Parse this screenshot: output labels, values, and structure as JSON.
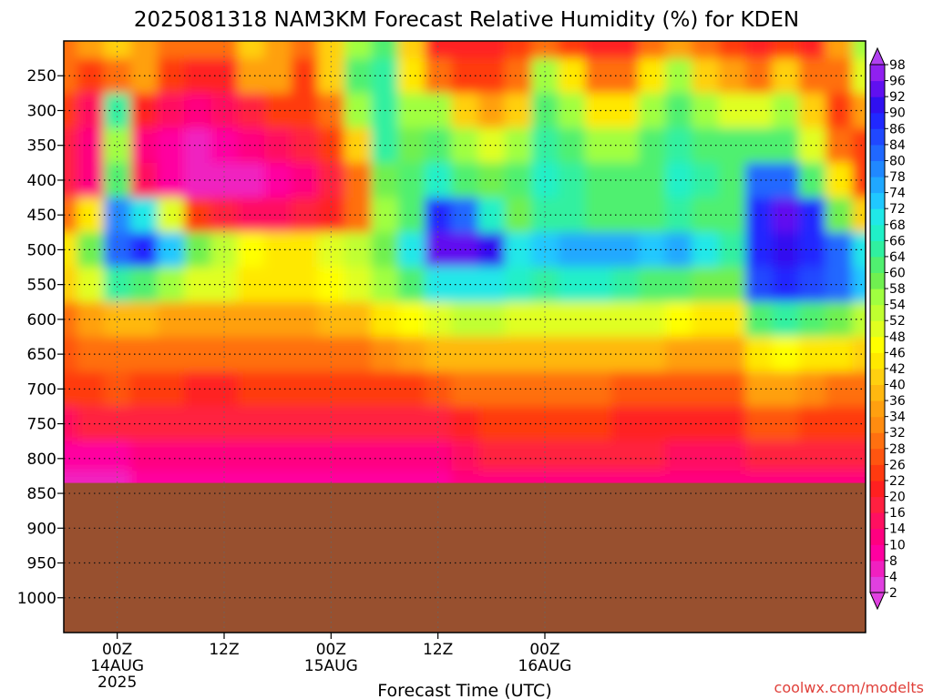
{
  "chart_data": {
    "type": "heatmap",
    "title": "2025081318 NAM3KM Forecast Relative Humidity (%) for KDEN",
    "xlabel": "Forecast Time (UTC)",
    "ylabel": "",
    "credit": "coolwx.com/modelts",
    "y_levels": [
      250,
      300,
      350,
      400,
      450,
      500,
      550,
      600,
      650,
      700,
      750,
      800,
      850,
      900,
      950,
      1000
    ],
    "y_tick_labels": [
      "250",
      "300",
      "350",
      "400",
      "450",
      "500",
      "550",
      "600",
      "650",
      "700",
      "750",
      "800",
      "850",
      "900",
      "950",
      "1000"
    ],
    "ylim": [
      200,
      1050
    ],
    "x_hours": [
      18,
      21,
      24,
      27,
      30,
      33,
      36,
      39,
      42,
      45,
      48,
      51,
      54,
      57,
      60,
      63,
      66,
      69,
      72,
      75,
      78,
      81,
      84,
      87,
      90,
      93,
      96,
      99,
      102,
      105,
      108
    ],
    "x_tick_hours": [
      24,
      36,
      48,
      60,
      72
    ],
    "x_tick_labels": [
      [
        "00Z",
        "14AUG",
        "2025"
      ],
      [
        "12Z"
      ],
      [
        "00Z",
        "15AUG"
      ],
      [
        "12Z"
      ],
      [
        "00Z",
        "16AUG"
      ]
    ],
    "ground_level_hpa": 835,
    "colorbar_values": [
      2,
      4,
      8,
      10,
      14,
      16,
      20,
      22,
      26,
      28,
      32,
      34,
      36,
      40,
      42,
      46,
      48,
      52,
      54,
      58,
      60,
      64,
      66,
      68,
      72,
      74,
      78,
      80,
      84,
      86,
      90,
      92,
      96,
      98
    ],
    "colorbar_colors": [
      "#e040e0",
      "#f020c0",
      "#ff00a0",
      "#ff0080",
      "#ff1060",
      "#ff2040",
      "#ff2020",
      "#ff3a10",
      "#ff5510",
      "#ff7010",
      "#ff8c10",
      "#ffa010",
      "#ffb810",
      "#ffd010",
      "#ffe800",
      "#ffff00",
      "#e0ff20",
      "#c0ff30",
      "#a0ff40",
      "#70f050",
      "#50f070",
      "#30f0a0",
      "#20f0c8",
      "#20e8e8",
      "#20c8ff",
      "#20a8ff",
      "#2088ff",
      "#2068ff",
      "#2048ff",
      "#2028ff",
      "#3010f0",
      "#6010f0",
      "#9020f0",
      "#b040f0"
    ],
    "ground_color": "#98502f",
    "rh_rows": [
      {
        "hpa": 200,
        "values": [
          30,
          35,
          40,
          35,
          30,
          28,
          30,
          40,
          35,
          30,
          40,
          55,
          60,
          40,
          20,
          20,
          20,
          25,
          30,
          25,
          20,
          20,
          30,
          35,
          30,
          25,
          20,
          25,
          20,
          35,
          55
        ]
      },
      {
        "hpa": 250,
        "values": [
          28,
          25,
          30,
          35,
          25,
          20,
          20,
          35,
          35,
          25,
          40,
          60,
          65,
          45,
          30,
          25,
          25,
          30,
          55,
          45,
          30,
          30,
          45,
          55,
          40,
          35,
          30,
          40,
          30,
          30,
          50
        ]
      },
      {
        "hpa": 300,
        "values": [
          22,
          15,
          65,
          20,
          14,
          12,
          14,
          18,
          22,
          22,
          30,
          55,
          65,
          55,
          55,
          40,
          35,
          40,
          60,
          55,
          45,
          45,
          55,
          60,
          55,
          50,
          50,
          55,
          40,
          25,
          35
        ]
      },
      {
        "hpa": 350,
        "values": [
          18,
          12,
          55,
          12,
          8,
          6,
          8,
          10,
          14,
          18,
          22,
          40,
          65,
          58,
          62,
          55,
          50,
          55,
          65,
          60,
          55,
          55,
          60,
          65,
          62,
          60,
          60,
          62,
          50,
          30,
          22
        ]
      },
      {
        "hpa": 400,
        "values": [
          16,
          12,
          60,
          14,
          8,
          6,
          6,
          6,
          8,
          12,
          18,
          28,
          58,
          62,
          66,
          60,
          58,
          60,
          66,
          64,
          62,
          62,
          62,
          66,
          64,
          62,
          80,
          82,
          62,
          45,
          25
        ]
      },
      {
        "hpa": 450,
        "values": [
          30,
          45,
          78,
          70,
          50,
          22,
          16,
          14,
          14,
          16,
          20,
          28,
          55,
          62,
          88,
          82,
          66,
          58,
          64,
          64,
          62,
          60,
          62,
          64,
          60,
          60,
          88,
          92,
          86,
          58,
          40
        ]
      },
      {
        "hpa": 500,
        "values": [
          45,
          58,
          82,
          88,
          72,
          58,
          52,
          46,
          45,
          45,
          48,
          52,
          58,
          70,
          92,
          94,
          90,
          70,
          72,
          76,
          76,
          74,
          72,
          74,
          68,
          64,
          88,
          90,
          88,
          80,
          70
        ]
      },
      {
        "hpa": 550,
        "values": [
          40,
          48,
          64,
          62,
          56,
          50,
          48,
          44,
          44,
          44,
          46,
          48,
          54,
          62,
          68,
          70,
          70,
          66,
          64,
          66,
          66,
          64,
          62,
          60,
          58,
          58,
          84,
          86,
          84,
          80,
          72
        ]
      },
      {
        "hpa": 600,
        "values": [
          30,
          34,
          38,
          36,
          34,
          34,
          34,
          34,
          34,
          34,
          36,
          38,
          42,
          46,
          50,
          52,
          52,
          50,
          48,
          48,
          48,
          48,
          48,
          46,
          44,
          44,
          62,
          64,
          62,
          58,
          52
        ]
      },
      {
        "hpa": 650,
        "values": [
          26,
          28,
          30,
          28,
          28,
          28,
          28,
          28,
          28,
          28,
          30,
          30,
          32,
          34,
          36,
          38,
          38,
          36,
          36,
          36,
          36,
          36,
          36,
          34,
          34,
          34,
          44,
          46,
          44,
          42,
          40
        ]
      },
      {
        "hpa": 700,
        "values": [
          22,
          24,
          26,
          24,
          22,
          20,
          20,
          22,
          22,
          22,
          24,
          24,
          24,
          24,
          26,
          28,
          28,
          28,
          28,
          28,
          28,
          26,
          26,
          26,
          26,
          26,
          34,
          34,
          32,
          30,
          30
        ]
      },
      {
        "hpa": 750,
        "values": [
          14,
          16,
          18,
          18,
          16,
          16,
          16,
          16,
          16,
          18,
          18,
          18,
          18,
          16,
          18,
          20,
          22,
          22,
          22,
          22,
          22,
          20,
          20,
          20,
          20,
          20,
          26,
          26,
          24,
          22,
          22
        ]
      },
      {
        "hpa": 800,
        "values": [
          8,
          8,
          8,
          10,
          10,
          10,
          10,
          10,
          10,
          10,
          10,
          10,
          10,
          10,
          10,
          14,
          16,
          16,
          16,
          16,
          16,
          16,
          16,
          14,
          14,
          14,
          16,
          16,
          16,
          16,
          16
        ]
      },
      {
        "hpa": 835,
        "values": [
          6,
          6,
          6,
          8,
          8,
          8,
          8,
          8,
          8,
          8,
          8,
          8,
          8,
          8,
          8,
          10,
          12,
          12,
          12,
          12,
          12,
          12,
          12,
          10,
          10,
          10,
          12,
          12,
          12,
          12,
          12
        ]
      }
    ]
  }
}
